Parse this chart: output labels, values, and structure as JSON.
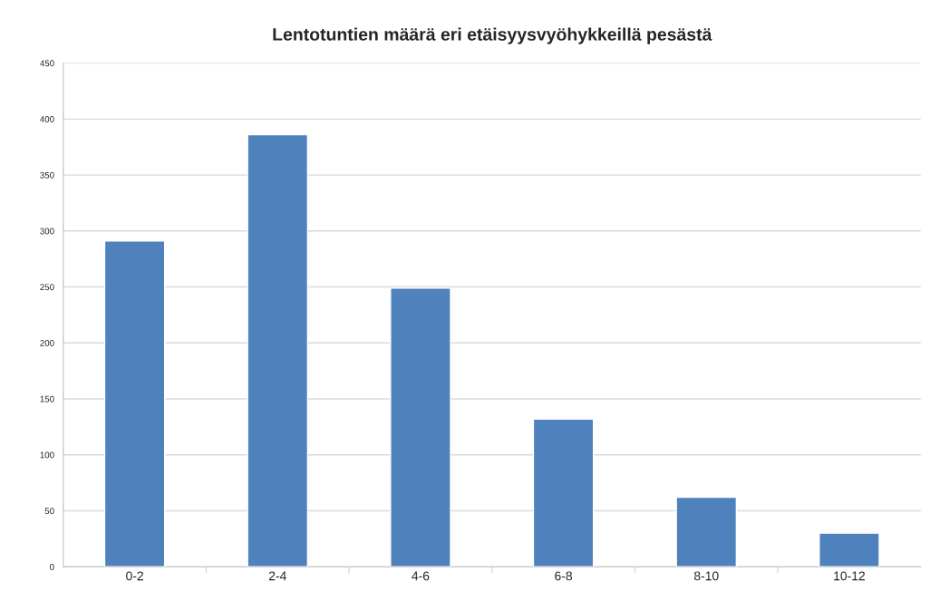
{
  "chart_data": {
    "type": "bar",
    "title": "Lentotuntien määrä eri etäisyysvyöhykkeillä pesästä",
    "categories": [
      "0-2",
      "2-4",
      "4-6",
      "6-8",
      "8-10",
      "10-12"
    ],
    "values": [
      291,
      386,
      249,
      132,
      62,
      30
    ],
    "color": "#4f81bd",
    "ylim": [
      0,
      450
    ],
    "yticks": [
      0,
      50,
      100,
      150,
      200,
      250,
      300,
      350,
      400,
      450
    ],
    "grid": "y"
  }
}
